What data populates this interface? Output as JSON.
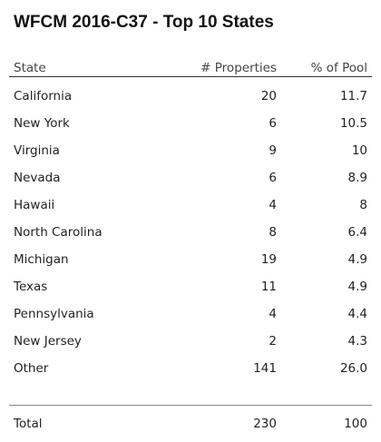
{
  "title": "WFCM 2016-C37 - Top 10 States",
  "table": {
    "header": [
      "State",
      "# Properties",
      "% of Pool"
    ],
    "rows": [
      [
        "California",
        "20",
        "11.7"
      ],
      [
        "New York",
        "6",
        "10.5"
      ],
      [
        "Virginia",
        "9",
        "10"
      ],
      [
        "Nevada",
        "6",
        "8.9"
      ],
      [
        "Hawaii",
        "4",
        "8"
      ],
      [
        "North Carolina",
        "8",
        "6.4"
      ],
      [
        "Michigan",
        "19",
        "4.9"
      ],
      [
        "Texas",
        "11",
        "4.9"
      ],
      [
        "Pennsylvania",
        "4",
        "4.4"
      ],
      [
        "New Jersey",
        "2",
        "4.3"
      ],
      [
        "Other",
        "141",
        "26.0"
      ]
    ],
    "total": [
      "Total",
      "230",
      "100"
    ]
  }
}
